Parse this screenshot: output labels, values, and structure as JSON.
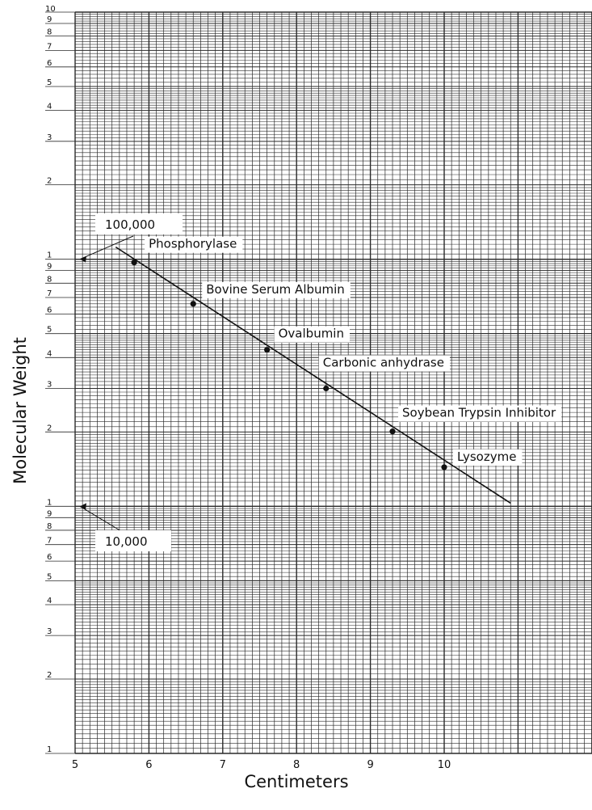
{
  "chart_data": {
    "type": "scatter",
    "title": "",
    "xlabel": "Centimeters",
    "ylabel": "Molecular Weight",
    "x_scale": "linear",
    "y_scale": "log",
    "xlim": [
      5,
      12
    ],
    "ylim": [
      1000,
      1000000
    ],
    "grid": true,
    "legend": "none",
    "x_ticks": [
      "5",
      "6",
      "7",
      "8",
      "9",
      "10"
    ],
    "y_decade_tick_labels": [
      "1",
      "2",
      "3",
      "4",
      "5",
      "6",
      "7",
      "8",
      "9"
    ],
    "y_top_label": "10",
    "series": [
      {
        "points": [
          {
            "label": "Phosphorylase",
            "x": 5.8,
            "y": 97000
          },
          {
            "label": "Bovine Serum Albumin",
            "x": 6.6,
            "y": 66000
          },
          {
            "label": "Ovalbumin",
            "x": 7.6,
            "y": 43000
          },
          {
            "label": "Carbonic anhydrase",
            "x": 8.4,
            "y": 30000
          },
          {
            "label": "Soybean Trypsin Inhibitor",
            "x": 9.3,
            "y": 20100
          },
          {
            "label": "Lysozyme",
            "x": 10.0,
            "y": 14400
          }
        ]
      }
    ],
    "fit_line": {
      "x": [
        5.55,
        10.9
      ],
      "y": [
        112000,
        10300
      ]
    },
    "reference_callouts": [
      {
        "label": "100,000",
        "x": 5.0,
        "y": 100000
      },
      {
        "label": "10,000",
        "x": 5.0,
        "y": 10000
      }
    ],
    "colors": {
      "grid": "#2a2a2a",
      "line": "#111111",
      "marker": "#111111",
      "background": "#ffffff"
    }
  }
}
